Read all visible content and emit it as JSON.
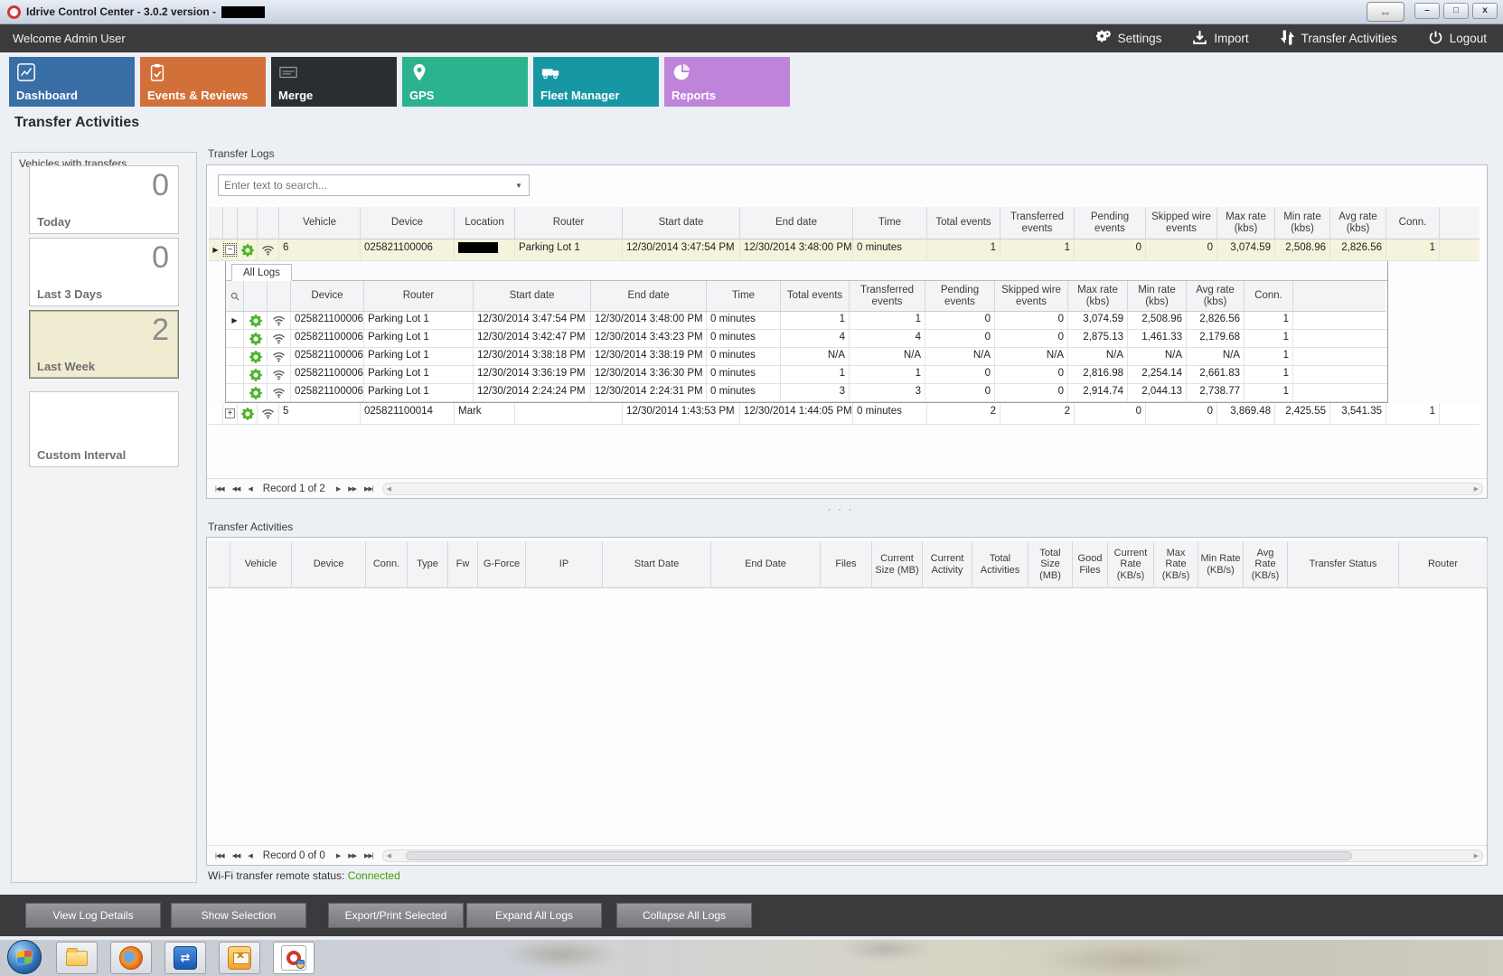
{
  "window": {
    "title": "Idrive Control Center - 3.0.2 version -",
    "title_redacted_suffix": true,
    "controls": {
      "minimize": "–",
      "maximize": "□",
      "close": "x",
      "remote_arrows": "⇔"
    }
  },
  "topbar": {
    "welcome": "Welcome Admin User",
    "actions": [
      {
        "label": "Settings",
        "icon": "gears-icon"
      },
      {
        "label": "Import",
        "icon": "import-icon"
      },
      {
        "label": "Transfer Activities",
        "icon": "transfer-arrows-icon"
      },
      {
        "label": "Logout",
        "icon": "power-icon"
      }
    ]
  },
  "nav": {
    "tiles": [
      {
        "label": "Dashboard",
        "color": "#3a6ea6",
        "icon": "line-chart-icon"
      },
      {
        "label": "Events & Reviews",
        "color": "#d2703a",
        "icon": "clipboard-check-icon"
      },
      {
        "label": "Merge",
        "color": "#2a2d31",
        "icon": "merge-box-icon"
      },
      {
        "label": "GPS",
        "color": "#2bb38e",
        "icon": "map-pin-icon"
      },
      {
        "label": "Fleet Manager",
        "color": "#1797a4",
        "icon": "vehicles-icon"
      },
      {
        "label": "Reports",
        "color": "#c083da",
        "icon": "pie-chart-icon"
      }
    ]
  },
  "page_title": "Transfer Activities",
  "sidebar": {
    "title": "Vehicles with transfers",
    "cards": [
      {
        "label": "Today",
        "value": "0",
        "selected": false
      },
      {
        "label": "Last 3 Days",
        "value": "0",
        "selected": false
      },
      {
        "label": "Last Week",
        "value": "2",
        "selected": true
      },
      {
        "label": "Custom Interval",
        "value": "",
        "selected": false
      }
    ]
  },
  "transfer_logs": {
    "title": "Transfer Logs",
    "search_placeholder": "Enter text to search...",
    "highlight_row_color": "#f5f3dc",
    "columns": [
      "Vehicle",
      "Device",
      "Location",
      "Router",
      "Start date",
      "End date",
      "Time",
      "Total events",
      "Transferred events",
      "Pending events",
      "Skipped wire events",
      "Max rate (kbs)",
      "Min rate (kbs)",
      "Avg rate (kbs)",
      "Conn."
    ],
    "rows": [
      {
        "expanded": true,
        "redacted_location": true,
        "cells": [
          "6",
          "025821100006",
          "",
          "Parking Lot 1",
          "12/30/2014 3:47:54 PM",
          "12/30/2014 3:48:00 PM",
          "0 minutes",
          "1",
          "1",
          "0",
          "0",
          "3,074.59",
          "2,508.96",
          "2,826.56",
          "1"
        ]
      },
      {
        "expanded": false,
        "redacted_location": false,
        "cells": [
          "5",
          "025821100014",
          "Mark",
          "",
          "12/30/2014 1:43:53 PM",
          "12/30/2014 1:44:05 PM",
          "0 minutes",
          "2",
          "2",
          "0",
          "0",
          "3,869.48",
          "2,425.55",
          "3,541.35",
          "1"
        ]
      }
    ],
    "sub": {
      "tab": "All Logs",
      "columns": [
        "Device",
        "Router",
        "Start date",
        "End date",
        "Time",
        "Total events",
        "Transferred events",
        "Pending events",
        "Skipped wire events",
        "Max rate (kbs)",
        "Min rate (kbs)",
        "Avg rate (kbs)",
        "Conn."
      ],
      "rows": [
        [
          "025821100006",
          "Parking Lot 1",
          "12/30/2014 3:47:54 PM",
          "12/30/2014 3:48:00 PM",
          "0 minutes",
          "1",
          "1",
          "0",
          "0",
          "3,074.59",
          "2,508.96",
          "2,826.56",
          "1"
        ],
        [
          "025821100006",
          "Parking Lot 1",
          "12/30/2014 3:42:47 PM",
          "12/30/2014 3:43:23 PM",
          "0 minutes",
          "4",
          "4",
          "0",
          "0",
          "2,875.13",
          "1,461.33",
          "2,179.68",
          "1"
        ],
        [
          "025821100006",
          "Parking Lot 1",
          "12/30/2014 3:38:18 PM",
          "12/30/2014 3:38:19 PM",
          "0 minutes",
          "N/A",
          "N/A",
          "N/A",
          "N/A",
          "N/A",
          "N/A",
          "N/A",
          "1"
        ],
        [
          "025821100006",
          "Parking Lot 1",
          "12/30/2014 3:36:19 PM",
          "12/30/2014 3:36:30 PM",
          "0 minutes",
          "1",
          "1",
          "0",
          "0",
          "2,816.98",
          "2,254.14",
          "2,661.83",
          "1"
        ],
        [
          "025821100006",
          "Parking Lot 1",
          "12/30/2014 2:24:24 PM",
          "12/30/2014 2:24:31 PM",
          "0 minutes",
          "3",
          "3",
          "0",
          "0",
          "2,914.74",
          "2,044.13",
          "2,738.77",
          "1"
        ]
      ]
    },
    "pager": "Record 1 of 2"
  },
  "transfer_activities": {
    "title": "Transfer Activities",
    "columns": [
      "Vehicle",
      "Device",
      "Conn.",
      "Type",
      "Fw",
      "G-Force",
      "IP",
      "Start Date",
      "End Date",
      "Files",
      "Current Size (MB)",
      "Current Activity",
      "Total Activities",
      "Total Size (MB)",
      "Good Files",
      "Current Rate (KB/s)",
      "Max Rate (KB/s)",
      "Min Rate (KB/s)",
      "Avg Rate (KB/s)",
      "Transfer Status",
      "Router"
    ],
    "pager": "Record 0 of 0",
    "wifi_label": "Wi-Fi transfer remote status:",
    "wifi_value": "Connected",
    "wifi_color": "#3f9e00"
  },
  "footer": {
    "buttons": [
      "View Log Details",
      "Show Selection",
      "Export/Print Selected",
      "Expand All Logs",
      "Collapse All Logs"
    ]
  },
  "taskbar": {
    "items": [
      "windows-start-icon",
      "file-explorer-icon",
      "firefox-icon",
      "teamviewer-icon",
      "outlook-icon",
      "idrive-app-icon"
    ]
  }
}
